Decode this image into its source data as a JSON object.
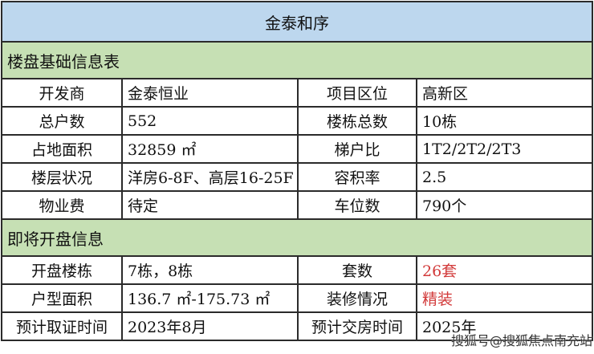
{
  "title": "金泰和序",
  "basic": {
    "heading": "楼盘基础信息表",
    "rows": [
      [
        "开发商",
        "金泰恒业",
        "项目区位",
        "高新区"
      ],
      [
        "总户数",
        "552",
        "楼栋总数",
        "10栋"
      ],
      [
        "占地面积",
        "32859 ㎡",
        "梯户比",
        "1T2/2T2/2T3"
      ],
      [
        "楼层状况",
        "洋房6-8F、高层16-25F",
        "容积率",
        "2.5"
      ],
      [
        "物业费",
        "待定",
        "车位数",
        "790个"
      ]
    ]
  },
  "opening": {
    "heading": "即将开盘信息",
    "rows": [
      [
        "开盘楼栋",
        "7栋，8栋",
        "套数",
        "26套"
      ],
      [
        "户型面积",
        "136.7 ㎡-175.73 ㎡",
        "装修情况",
        "精装"
      ],
      [
        "预计取证时间",
        "2023年8月",
        "预计交房时间",
        "2025年"
      ]
    ]
  },
  "highlight_color": "#d23a3a",
  "watermark": "搜狐号@搜狐焦点南充站"
}
